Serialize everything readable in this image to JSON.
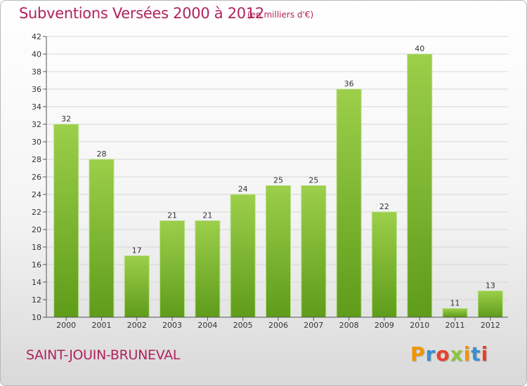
{
  "title": "Subventions Versées 2000 à 2012",
  "subtitle": "(en milliers d'€)",
  "commune": "SAINT-JOUIN-BRUNEVAL",
  "logo": {
    "letters": [
      "P",
      "r",
      "o",
      "x",
      "i",
      "t",
      "i"
    ],
    "colors": [
      "#f29400",
      "#3a8fd0",
      "#e8412c",
      "#8ec63f",
      "#f29400",
      "#3a8fd0",
      "#e8412c"
    ]
  },
  "colors": {
    "bar_light": "#9ccf4a",
    "bar_dark": "#5e9c1a",
    "text_accent": "#b0235a"
  },
  "chart_data": {
    "type": "bar",
    "categories": [
      "2000",
      "2001",
      "2002",
      "2003",
      "2004",
      "2005",
      "2006",
      "2007",
      "2008",
      "2009",
      "2010",
      "2011",
      "2012"
    ],
    "values": [
      32,
      28,
      17,
      21,
      21,
      24,
      25,
      25,
      36,
      22,
      40,
      11,
      13
    ],
    "title": "Subventions Versées 2000 à 2012",
    "xlabel": "",
    "ylabel": "",
    "ylim": [
      10,
      42
    ],
    "yticks": [
      10,
      12,
      14,
      16,
      18,
      20,
      22,
      24,
      26,
      28,
      30,
      32,
      34,
      36,
      38,
      40,
      42
    ],
    "grid": true,
    "data_labels": true
  }
}
